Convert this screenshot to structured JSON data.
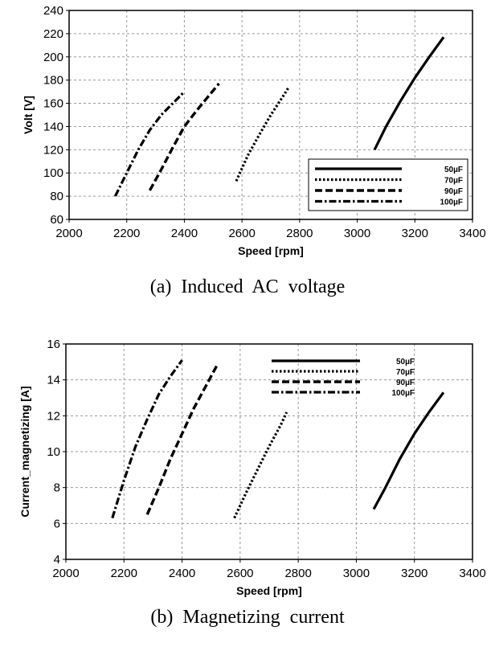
{
  "chart_data": [
    {
      "type": "line",
      "caption": "(a) Induced AC voltage",
      "xlabel": "Speed [rpm]",
      "ylabel": "Volt [V]",
      "xlim": [
        2000,
        3400
      ],
      "ylim": [
        60,
        240
      ],
      "xticks": [
        2000,
        2200,
        2400,
        2600,
        2800,
        3000,
        3200,
        3400
      ],
      "yticks": [
        60,
        80,
        100,
        120,
        140,
        160,
        180,
        200,
        220,
        240
      ],
      "grid": true,
      "legend_position": "lower-right",
      "series": [
        {
          "name": "50µF",
          "dash": "solid",
          "x": [
            3060,
            3100,
            3150,
            3200,
            3250,
            3300
          ],
          "y": [
            120,
            140,
            162,
            182,
            200,
            217
          ]
        },
        {
          "name": "70µF",
          "dash": "dotted",
          "x": [
            2580,
            2620,
            2660,
            2700,
            2740,
            2760
          ],
          "y": [
            93,
            115,
            133,
            150,
            165,
            173
          ]
        },
        {
          "name": "90µF",
          "dash": "dashed",
          "x": [
            2280,
            2320,
            2360,
            2400,
            2440,
            2480,
            2520
          ],
          "y": [
            85,
            103,
            122,
            140,
            153,
            165,
            177
          ]
        },
        {
          "name": "100µF",
          "dash": "dashdot",
          "x": [
            2160,
            2200,
            2240,
            2280,
            2320,
            2360,
            2400
          ],
          "y": [
            80,
            100,
            120,
            137,
            150,
            160,
            170
          ]
        }
      ]
    },
    {
      "type": "line",
      "caption": "(b) Magnetizing current",
      "xlabel": "Speed [rpm]",
      "ylabel": "Current_magnetizing [A]",
      "xlim": [
        2000,
        3400
      ],
      "ylim": [
        4,
        16
      ],
      "xticks": [
        2000,
        2200,
        2400,
        2600,
        2800,
        3000,
        3200,
        3400
      ],
      "yticks": [
        4,
        6,
        8,
        10,
        12,
        14,
        16
      ],
      "grid": true,
      "legend_position": "top-right",
      "series": [
        {
          "name": "50µF",
          "dash": "solid",
          "x": [
            3060,
            3100,
            3150,
            3200,
            3250,
            3300
          ],
          "y": [
            6.8,
            8.0,
            9.6,
            11.0,
            12.2,
            13.3
          ]
        },
        {
          "name": "70µF",
          "dash": "dotted",
          "x": [
            2580,
            2620,
            2660,
            2700,
            2740,
            2760
          ],
          "y": [
            6.3,
            7.7,
            9.0,
            10.3,
            11.5,
            12.2
          ]
        },
        {
          "name": "90µF",
          "dash": "dashed",
          "x": [
            2280,
            2320,
            2360,
            2400,
            2440,
            2480,
            2520
          ],
          "y": [
            6.5,
            8.0,
            9.6,
            11.0,
            12.4,
            13.6,
            14.8
          ]
        },
        {
          "name": "100µF",
          "dash": "dashdot",
          "x": [
            2160,
            2200,
            2240,
            2280,
            2320,
            2360,
            2400
          ],
          "y": [
            6.3,
            8.4,
            10.3,
            11.8,
            13.2,
            14.2,
            15.1
          ]
        }
      ]
    }
  ]
}
